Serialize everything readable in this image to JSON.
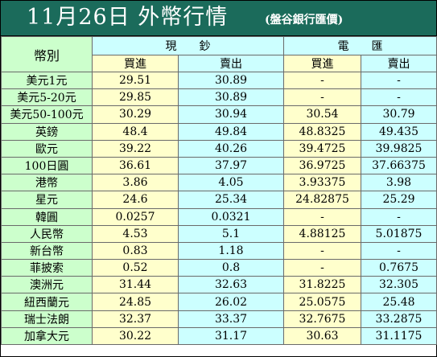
{
  "title": "11月26日 外幣行情",
  "subtitle": "(盤谷銀行匯價)",
  "header": {
    "currency_label": "幣別",
    "cash_label": "現　　鈔",
    "wire_label": "電　　匯",
    "buy_label": "買進",
    "sell_label": "賣出"
  },
  "colors": {
    "title_bg": "#1b6b5b",
    "currency_bg": "#ccffcc",
    "buy_bg": "#ffffcc",
    "sell_bg": "#ccffff"
  },
  "rows": [
    {
      "currency": "美元1元",
      "cash_buy": "29.51",
      "cash_sell": "30.89",
      "wire_buy": "-",
      "wire_sell": "-"
    },
    {
      "currency": "美元5-20元",
      "cash_buy": "29.85",
      "cash_sell": "30.89",
      "wire_buy": "-",
      "wire_sell": "-"
    },
    {
      "currency": "美元50-100元",
      "cash_buy": "30.29",
      "cash_sell": "30.94",
      "wire_buy": "30.54",
      "wire_sell": "30.79"
    },
    {
      "currency": "英鎊",
      "cash_buy": "48.4",
      "cash_sell": "49.84",
      "wire_buy": "48.8325",
      "wire_sell": "49.435"
    },
    {
      "currency": "歐元",
      "cash_buy": "39.22",
      "cash_sell": "40.26",
      "wire_buy": "39.4725",
      "wire_sell": "39.9825"
    },
    {
      "currency": "100日圓",
      "cash_buy": "36.61",
      "cash_sell": "37.97",
      "wire_buy": "36.9725",
      "wire_sell": "37.66375"
    },
    {
      "currency": "港幣",
      "cash_buy": "3.86",
      "cash_sell": "4.05",
      "wire_buy": "3.93375",
      "wire_sell": "3.98"
    },
    {
      "currency": "星元",
      "cash_buy": "24.6",
      "cash_sell": "25.34",
      "wire_buy": "24.82875",
      "wire_sell": "25.29"
    },
    {
      "currency": "韓圓",
      "cash_buy": "0.0257",
      "cash_sell": "0.0321",
      "wire_buy": "-",
      "wire_sell": "-"
    },
    {
      "currency": "人民幣",
      "cash_buy": "4.53",
      "cash_sell": "5.1",
      "wire_buy": "4.88125",
      "wire_sell": "5.01875"
    },
    {
      "currency": "新台幣",
      "cash_buy": "0.83",
      "cash_sell": "1.18",
      "wire_buy": "-",
      "wire_sell": "-"
    },
    {
      "currency": "菲披索",
      "cash_buy": "0.52",
      "cash_sell": "0.8",
      "wire_buy": "-",
      "wire_sell": "0.7675"
    },
    {
      "currency": "澳洲元",
      "cash_buy": "31.44",
      "cash_sell": "32.63",
      "wire_buy": "31.8225",
      "wire_sell": "32.305"
    },
    {
      "currency": "紐西蘭元",
      "cash_buy": "24.85",
      "cash_sell": "26.02",
      "wire_buy": "25.0575",
      "wire_sell": "25.48"
    },
    {
      "currency": "瑞士法朗",
      "cash_buy": "32.37",
      "cash_sell": "33.37",
      "wire_buy": "32.7675",
      "wire_sell": "33.2875"
    },
    {
      "currency": "加拿大元",
      "cash_buy": "30.22",
      "cash_sell": "31.17",
      "wire_buy": "30.63",
      "wire_sell": "31.1175"
    }
  ]
}
